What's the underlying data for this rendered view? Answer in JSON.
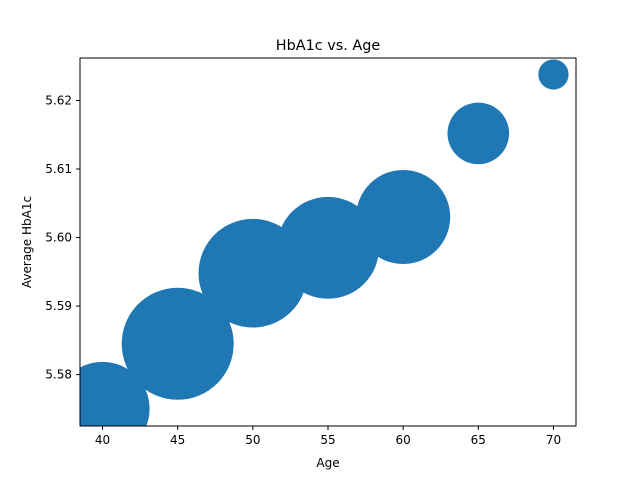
{
  "chart_data": {
    "type": "scatter",
    "title": "HbA1c vs. Age",
    "xlabel": "Age",
    "ylabel": "Average HbA1c",
    "xlim": [
      38.5,
      71.5
    ],
    "ylim": [
      5.5725,
      5.6262
    ],
    "xticks": [
      40,
      45,
      50,
      55,
      60,
      65,
      70
    ],
    "xtick_labels": [
      "40",
      "45",
      "50",
      "55",
      "60",
      "65",
      "70"
    ],
    "yticks": [
      5.58,
      5.59,
      5.6,
      5.61,
      5.62
    ],
    "ytick_labels": [
      "5.58",
      "5.59",
      "5.60",
      "5.61",
      "5.62"
    ],
    "grid": false,
    "legend": "none",
    "marker_color": "#1f77b4",
    "points": [
      {
        "x": 40,
        "y": 5.575,
        "relative_size": 0.84
      },
      {
        "x": 45,
        "y": 5.5845,
        "relative_size": 1.0
      },
      {
        "x": 50,
        "y": 5.5948,
        "relative_size": 0.97
      },
      {
        "x": 55,
        "y": 5.5985,
        "relative_size": 0.91
      },
      {
        "x": 60,
        "y": 5.603,
        "relative_size": 0.84
      },
      {
        "x": 65,
        "y": 5.6152,
        "relative_size": 0.55
      },
      {
        "x": 70,
        "y": 5.6238,
        "relative_size": 0.27
      }
    ]
  }
}
